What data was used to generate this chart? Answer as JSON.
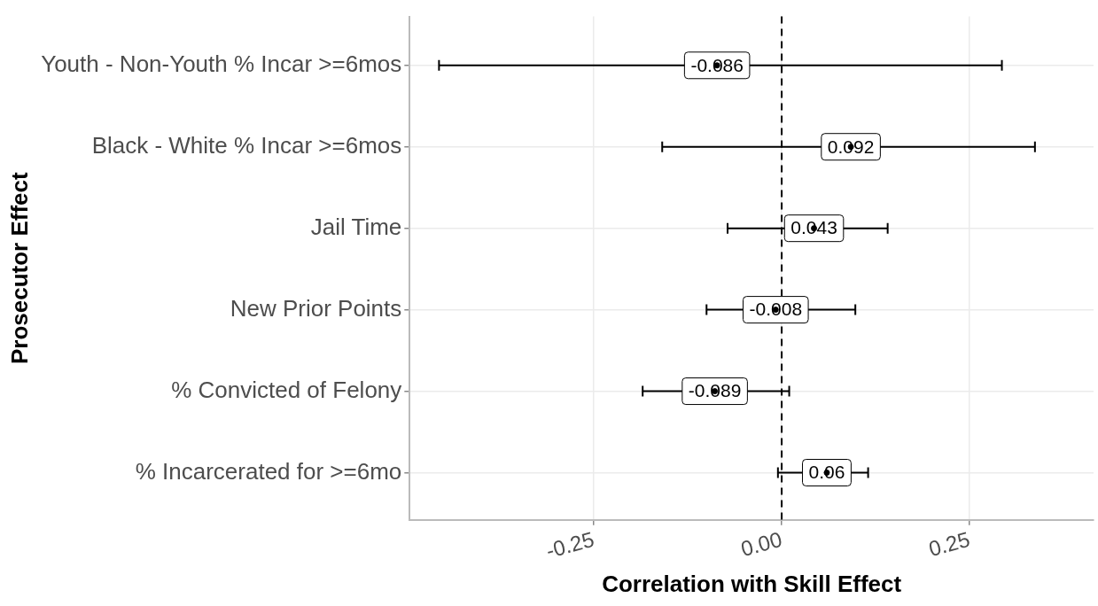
{
  "chart_data": {
    "type": "scatter",
    "orientation": "horizontal",
    "xlabel": "Correlation with Skill Effect",
    "ylabel": "Prosecutor Effect",
    "categories": [
      "Youth - Non-Youth % Incar >=6mos",
      "Black - White % Incar >=6mos",
      "Jail Time",
      "New Prior Points",
      "% Convicted of Felony",
      "% Incarcerated for >=6mo"
    ],
    "values": [
      -0.086,
      0.092,
      0.043,
      -0.008,
      -0.089,
      0.06
    ],
    "errors": [
      [
        -0.456,
        0.293
      ],
      [
        -0.159,
        0.337
      ],
      [
        -0.072,
        0.141
      ],
      [
        -0.1,
        0.098
      ],
      [
        -0.185,
        0.01
      ],
      [
        -0.005,
        0.115
      ]
    ],
    "data_labels": true,
    "marker": "circle",
    "color": "#000000",
    "xlim": [
      -0.495,
      0.415
    ],
    "xticks": [
      -0.25,
      {
        "value": 0,
        "label": "0.00"
      },
      0.25
    ],
    "ref_lines": [
      {
        "axis": "x",
        "value": 0,
        "line_style": "dashed",
        "color": "#000000"
      }
    ],
    "grid": true,
    "legend": false
  }
}
